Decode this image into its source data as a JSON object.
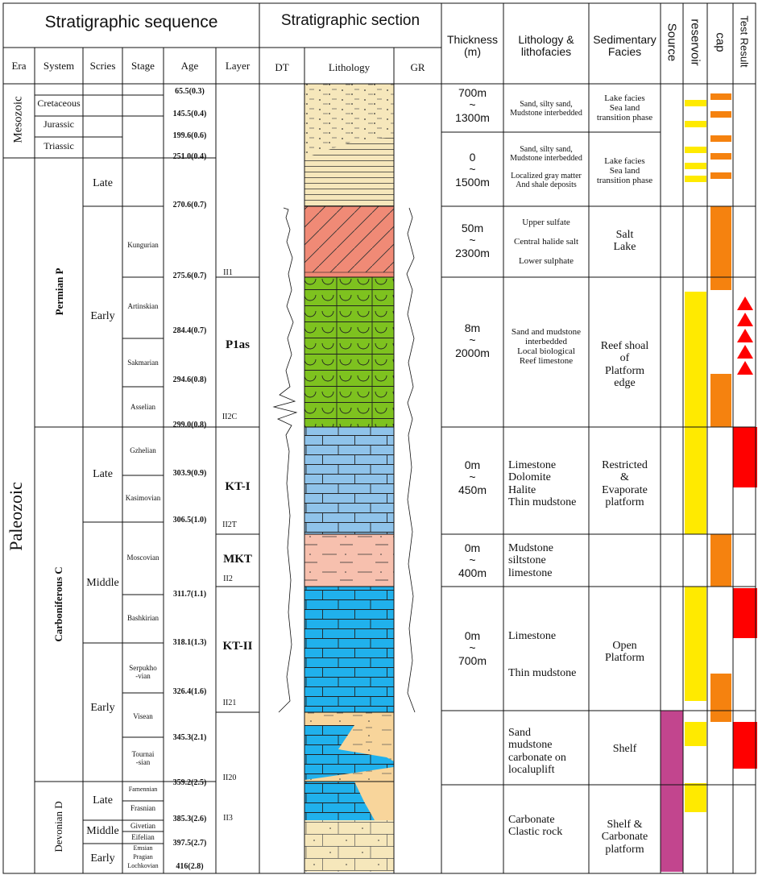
{
  "header": {
    "stratigraphic_sequence": "Stratigraphic sequence",
    "stratigraphic_section": "Stratigraphic section",
    "thickness": "Thickness\n(m)",
    "lithology_lithofacies": "Lithology &\nlithofacies",
    "sedimentary_facies": "Sedimentary\nFacies",
    "source": "Source",
    "reservoir": "reservoir",
    "cap": "cap",
    "test_result": "Test Result",
    "era": "Era",
    "system": "System",
    "series": "Scries",
    "stage": "Stage",
    "age": "Age",
    "layer": "Layer",
    "dt": "DT",
    "lithology": "Lithology",
    "gr": "GR"
  },
  "eras": [
    "Mesozoic",
    "Paleozoic"
  ],
  "systems": [
    "Cretaceous",
    "Jurassic",
    "Triassic",
    "Permian    P",
    "Carboniferous    C",
    "Devonian    D"
  ],
  "series": [
    "Late",
    "Early",
    "Late",
    "Middle",
    "Early",
    "Late",
    "Middle",
    "Early"
  ],
  "stages": [
    "Kungurian",
    "Artinskian",
    "Sakmarian",
    "Asselian",
    "Gzhelian",
    "Kasimovian",
    "Moscovian",
    "Bashkirian",
    "Serpukho\n-vian",
    "Visean",
    "Tournai\n-sian",
    "Famennian",
    "Frasnian",
    "Givetian",
    "Eifelian",
    "Emsian",
    "Pragian",
    "Lochkovian"
  ],
  "ages": [
    "65.5(0.3)",
    "145.5(0.4)",
    "199.6(0.6)",
    "251.0(0.4)",
    "270.6(0.7)",
    "275.6(0.7)",
    "284.4(0.7)",
    "294.6(0.8)",
    "299.0(0.8)",
    "303.9(0.9)",
    "306.5(1.0)",
    "311.7(1.1)",
    "318.1(1.3)",
    "326.4(1.6)",
    "345.3(2.1)",
    "359.2(2.5)",
    "385.3(2.6)",
    "397.5(2.7)",
    "416(2.8)"
  ],
  "layers": [
    "P1as",
    "KT-I",
    "MKT",
    "KT-II"
  ],
  "boundaries": [
    "II1",
    "II2C",
    "II2T",
    "II2",
    "II21",
    "II20",
    "II3"
  ],
  "thickness": [
    "700m\n~\n1300m",
    "0\n~\n1500m",
    "50m\n~\n2300m",
    "8m\n~\n2000m",
    "0m\n~\n450m",
    "0m\n~\n400m",
    "0m\n~\n700m"
  ],
  "lithofacies": [
    "Sand, silty sand,\nMudstone interbedded",
    "Sand, silty sand,\nMudstone interbedded\n\nLocalized gray matter\nAnd shale deposits",
    "Upper sulfate\n\nCentral halide salt\n\nLower sulphate",
    "Sand and mudstone\ninterbedded\nLocal biological\nReef limestone",
    "Limestone\nDolomite\nHalite\nThin mudstone",
    "Mudstone\nsiltstone\nlimestone",
    "Limestone\n\n\nThin mudstone",
    "Sand\nmudstone\ncarbonate on\nlocaluplift",
    "Carbonate\nClastic rock"
  ],
  "facies": [
    "Lake facies\nSea land\ntransition phase",
    "Lake facies\nSea land\ntransition phase",
    "Salt\nLake",
    "Reef shoal\nof\nPlatform\nedge",
    "Restricted\n&\nEvaporate\nplatform",
    "Open\nPlatform",
    "Shelf",
    "Shelf &\nCarbonate\nplatform"
  ],
  "colors": {
    "sand": "#f6e7bb",
    "salt": "#f08a76",
    "reef": "#7ec21f",
    "limestone_light": "#8fc3ea",
    "mudstone_pink": "#f7c0ae",
    "limestone_dark": "#20b1ec",
    "sandstone": "#f8d59b",
    "source": "#c2458e",
    "reservoir": "#ffea00",
    "cap": "#f5820f",
    "test": "#ff0000"
  }
}
